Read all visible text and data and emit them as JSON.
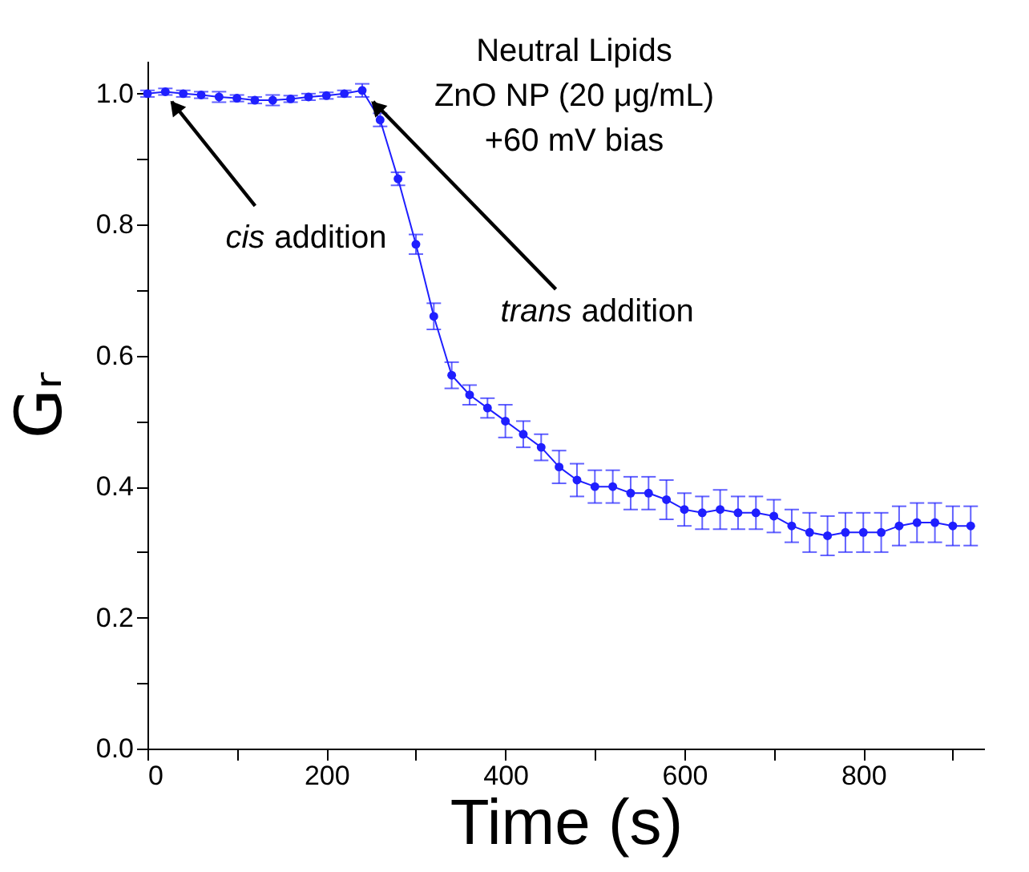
{
  "chart_data": {
    "type": "line",
    "title": "Neutral Lipids\nZnO NP (20 μg/mL)\n+60 mV bias",
    "xlabel": "Time (s)",
    "ylabel": "Gᵣ",
    "x": [
      0,
      20,
      40,
      60,
      80,
      100,
      120,
      140,
      160,
      180,
      200,
      220,
      240,
      260,
      280,
      300,
      320,
      340,
      360,
      380,
      400,
      420,
      440,
      460,
      480,
      500,
      520,
      540,
      560,
      580,
      600,
      620,
      640,
      660,
      680,
      700,
      720,
      740,
      760,
      780,
      800,
      820,
      840,
      860,
      880,
      900,
      920
    ],
    "series": [
      {
        "color": "#1f1fff",
        "values": [
          1.0,
          1.003,
          1.0,
          0.998,
          0.995,
          0.993,
          0.99,
          0.99,
          0.992,
          0.995,
          0.997,
          1.0,
          1.005,
          0.96,
          0.87,
          0.77,
          0.66,
          0.57,
          0.54,
          0.52,
          0.5,
          0.48,
          0.46,
          0.43,
          0.41,
          0.4,
          0.4,
          0.39,
          0.39,
          0.38,
          0.365,
          0.36,
          0.365,
          0.36,
          0.36,
          0.355,
          0.34,
          0.33,
          0.325,
          0.33,
          0.33,
          0.33,
          0.34,
          0.345,
          0.345,
          0.34,
          0.34
        ],
        "errors": [
          0.005,
          0.005,
          0.005,
          0.005,
          0.008,
          0.005,
          0.005,
          0.008,
          0.005,
          0.005,
          0.005,
          0.005,
          0.01,
          0.01,
          0.01,
          0.015,
          0.02,
          0.02,
          0.015,
          0.015,
          0.025,
          0.02,
          0.02,
          0.025,
          0.025,
          0.025,
          0.025,
          0.025,
          0.025,
          0.03,
          0.025,
          0.025,
          0.03,
          0.025,
          0.025,
          0.025,
          0.025,
          0.03,
          0.03,
          0.03,
          0.03,
          0.03,
          0.03,
          0.03,
          0.03,
          0.03,
          0.03
        ]
      }
    ],
    "xlim": [
      0,
      935
    ],
    "ylim": [
      0,
      1.05
    ],
    "xticks": [
      0,
      {
        "value": 100,
        "label": null
      },
      200,
      {
        "value": 300,
        "label": null
      },
      400,
      {
        "value": 500,
        "label": null
      },
      600,
      {
        "value": 700,
        "label": null
      },
      800,
      {
        "value": 900,
        "label": null
      }
    ],
    "yticks": [
      {
        "value": 0,
        "label": "0.0"
      },
      {
        "value": 0.1,
        "label": null
      },
      {
        "value": 0.2,
        "label": "0.2"
      },
      {
        "value": 0.3,
        "label": null
      },
      {
        "value": 0.4,
        "label": "0.4"
      },
      {
        "value": 0.5,
        "label": null
      },
      {
        "value": 0.6,
        "label": "0.6"
      },
      {
        "value": 0.7,
        "label": null
      },
      {
        "value": 0.8,
        "label": "0.8"
      },
      {
        "value": 0.9,
        "label": null
      },
      {
        "value": 1,
        "label": "1.0"
      }
    ],
    "marker": "circle",
    "line_style": "solid",
    "grid": false,
    "annotations": [
      {
        "text": "cis addition",
        "x": 20,
        "y": 1.0
      },
      {
        "text": "trans addition",
        "x": 245,
        "y": 1.0
      }
    ]
  }
}
